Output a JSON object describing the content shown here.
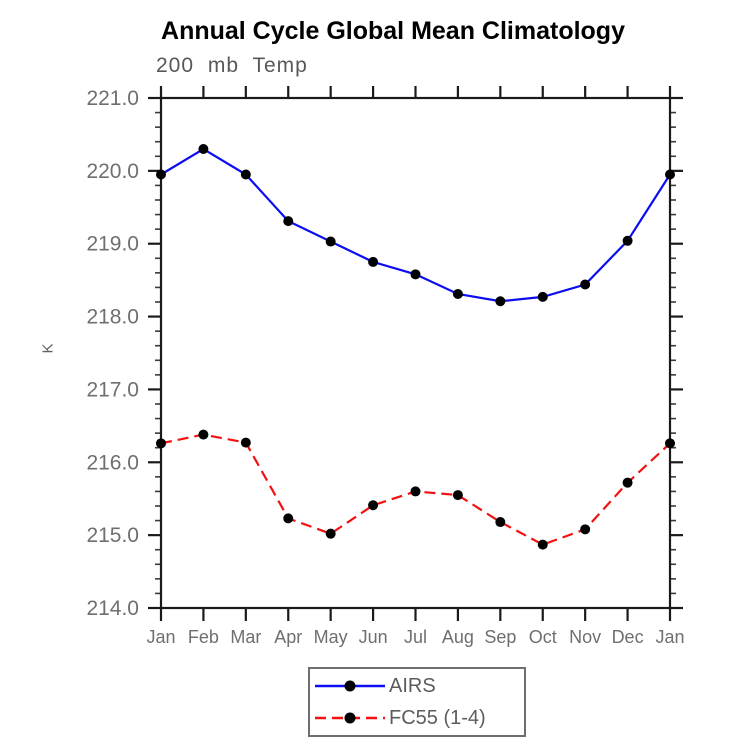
{
  "title": "Annual Cycle Global Mean Climatology",
  "subtitle": "200 mb Temp",
  "chart_data": {
    "type": "line",
    "categories": [
      "Jan",
      "Feb",
      "Mar",
      "Apr",
      "May",
      "Jun",
      "Jul",
      "Aug",
      "Sep",
      "Oct",
      "Nov",
      "Dec",
      "Jan"
    ],
    "series": [
      {
        "name": "AIRS",
        "color": "#0d0df2",
        "line_style": "solid",
        "marker": "circle",
        "marker_color": "#000000",
        "values": [
          219.95,
          220.3,
          219.95,
          219.31,
          219.03,
          218.75,
          218.58,
          218.31,
          218.21,
          218.27,
          218.44,
          219.04,
          219.95
        ]
      },
      {
        "name": "FC55 (1-4)",
        "color": "#f21111",
        "line_style": "dashed",
        "marker": "circle",
        "marker_color": "#000000",
        "values": [
          216.26,
          216.38,
          216.27,
          215.23,
          215.02,
          215.41,
          215.6,
          215.55,
          215.18,
          214.87,
          215.08,
          215.72,
          216.26
        ]
      }
    ],
    "xlabel": "",
    "ylabel": "K",
    "ylim": [
      214.0,
      221.0
    ],
    "ytick_step": 1.0,
    "ytick_labels": [
      "214.0",
      "215.0",
      "216.0",
      "217.0",
      "218.0",
      "219.0",
      "220.0",
      "221.0"
    ],
    "yminor_step": 0.2,
    "grid": false,
    "legend_position": "bottom-center"
  },
  "colors": {
    "axis": "#1a1a1a",
    "tick_label": "#6f6f6f",
    "title": "#000000",
    "subtitle": "#585858",
    "legend_border": "#6e6e6e",
    "background": "#ffffff"
  }
}
